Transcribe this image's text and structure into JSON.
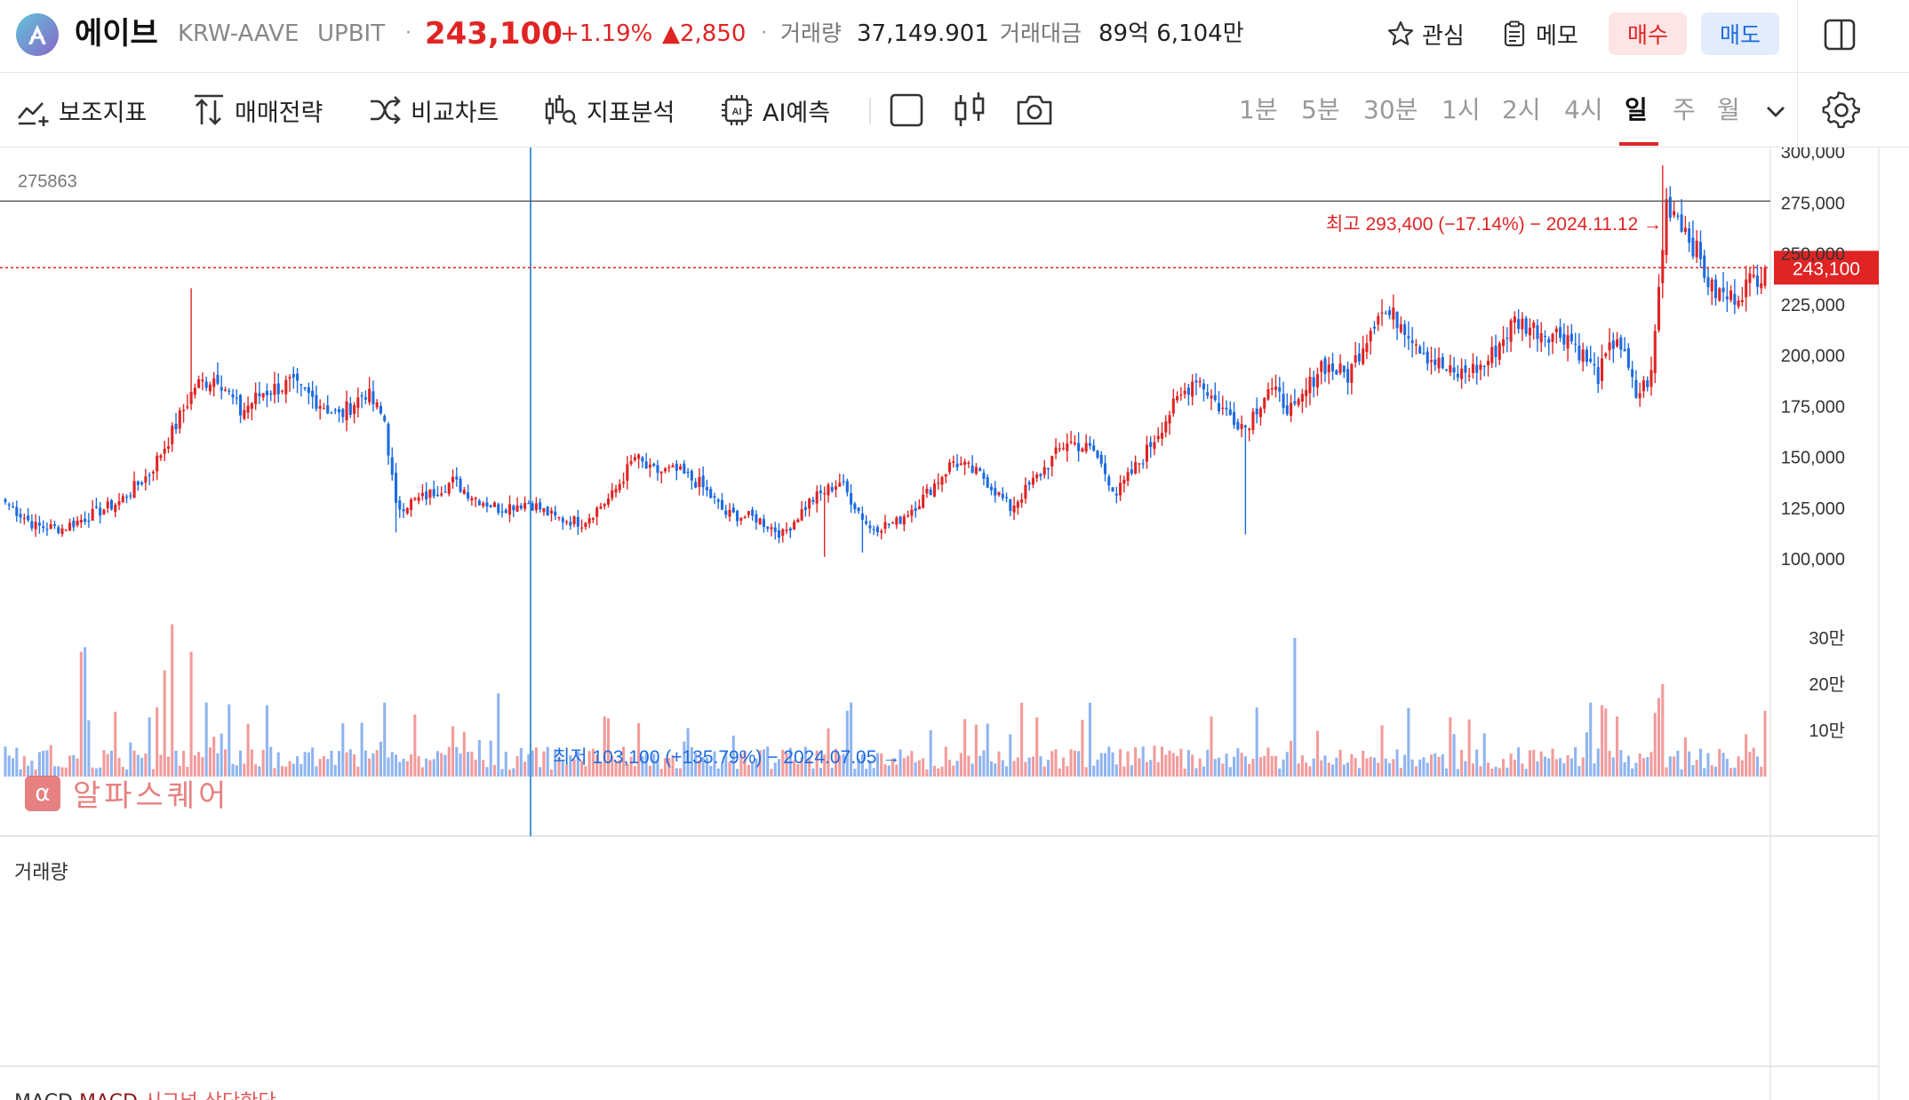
{
  "header": {
    "coin_name": "에이브",
    "pair": "KRW-AAVE",
    "exchange": "UPBIT",
    "separator": "·",
    "price": "243,100",
    "change_pct": "+1.19%",
    "change_abs": "▲2,850",
    "volume_label": "거래량",
    "volume_value": "37,149.901",
    "amount_label": "거래대금",
    "amount_value": "89억 6,104만",
    "watch_label": "관심",
    "memo_label": "메모",
    "buy_label": "매수",
    "sell_label": "매도"
  },
  "toolbar": {
    "tools": [
      "보조지표",
      "매매전략",
      "비교차트",
      "지표분석",
      "AI예측"
    ],
    "timeframes": [
      "1분",
      "5분",
      "30분",
      "1시",
      "2시",
      "4시",
      "일",
      "주",
      "월"
    ],
    "active_timeframe": "일"
  },
  "colors": {
    "up": "#e02424",
    "down": "#1c6be0",
    "up_volume": "#f29b9b",
    "down_volume": "#8fb4f0"
  },
  "watermark": {
    "icon_text": "α",
    "text": "알파스퀘어"
  },
  "panels": {
    "volume_title": "거래량",
    "macd_title_1": "MACD",
    "macd_title_2": "MACD",
    "macd_title_3": "시그널",
    "macd_title_4": "상단한단"
  },
  "chart_data": {
    "type": "candlestick",
    "symbol": "KRW-AAVE",
    "interval": "일",
    "y_axis_ticks": [
      "300,000",
      "275,000",
      "250,000",
      "225,000",
      "200,000",
      "175,000",
      "150,000",
      "125,000",
      "100,000"
    ],
    "y_range": [
      75000,
      320000
    ],
    "current_price": 243100,
    "current_price_label": "243,100",
    "horizontal_line_value": 275863,
    "horizontal_line_label": "275863",
    "high_annotation": "최고 293,400 (−17.14%) − 2024.11.12 →",
    "low_annotation": "최저 103,100 (+135.79%) − 2024.07.05 →",
    "volume_axis_ticks": [
      "30만",
      "20만",
      "10만"
    ],
    "volume_range": [
      0,
      330000
    ],
    "anchors": [
      [
        0,
        128000
      ],
      [
        8,
        116000
      ],
      [
        15,
        115000
      ],
      [
        22,
        121000
      ],
      [
        30,
        128000
      ],
      [
        38,
        142000
      ],
      [
        44,
        162000
      ],
      [
        50,
        185000
      ],
      [
        56,
        190000
      ],
      [
        62,
        172000
      ],
      [
        68,
        182000
      ],
      [
        75,
        186000
      ],
      [
        82,
        178000
      ],
      [
        88,
        170000
      ],
      [
        95,
        182000
      ],
      [
        100,
        168000
      ],
      [
        103,
        125000
      ],
      [
        110,
        130000
      ],
      [
        118,
        138000
      ],
      [
        124,
        130000
      ],
      [
        130,
        125000
      ],
      [
        138,
        128000
      ],
      [
        145,
        120000
      ],
      [
        152,
        118000
      ],
      [
        160,
        131000
      ],
      [
        166,
        150000
      ],
      [
        170,
        143000
      ],
      [
        177,
        143000
      ],
      [
        183,
        137000
      ],
      [
        190,
        122000
      ],
      [
        198,
        120000
      ],
      [
        205,
        112000
      ],
      [
        212,
        128000
      ],
      [
        220,
        138000
      ],
      [
        228,
        115000
      ],
      [
        235,
        118000
      ],
      [
        242,
        130000
      ],
      [
        250,
        148000
      ],
      [
        258,
        140000
      ],
      [
        265,
        125000
      ],
      [
        272,
        140000
      ],
      [
        280,
        158000
      ],
      [
        287,
        153000
      ],
      [
        293,
        132000
      ],
      [
        300,
        150000
      ],
      [
        307,
        172000
      ],
      [
        314,
        190000
      ],
      [
        320,
        175000
      ],
      [
        327,
        165000
      ],
      [
        333,
        184000
      ],
      [
        340,
        172000
      ],
      [
        347,
        196000
      ],
      [
        354,
        190000
      ],
      [
        362,
        222000
      ],
      [
        368,
        217000
      ],
      [
        375,
        200000
      ],
      [
        382,
        190000
      ],
      [
        390,
        195000
      ],
      [
        398,
        217000
      ],
      [
        405,
        212000
      ],
      [
        412,
        210000
      ],
      [
        420,
        190000
      ],
      [
        425,
        210000
      ],
      [
        430,
        180000
      ],
      [
        434,
        190000
      ],
      [
        438,
        275000
      ],
      [
        441,
        270000
      ],
      [
        445,
        255000
      ],
      [
        450,
        232000
      ],
      [
        455,
        228000
      ],
      [
        460,
        236000
      ],
      [
        464,
        243100
      ]
    ],
    "last_index": 464
  }
}
